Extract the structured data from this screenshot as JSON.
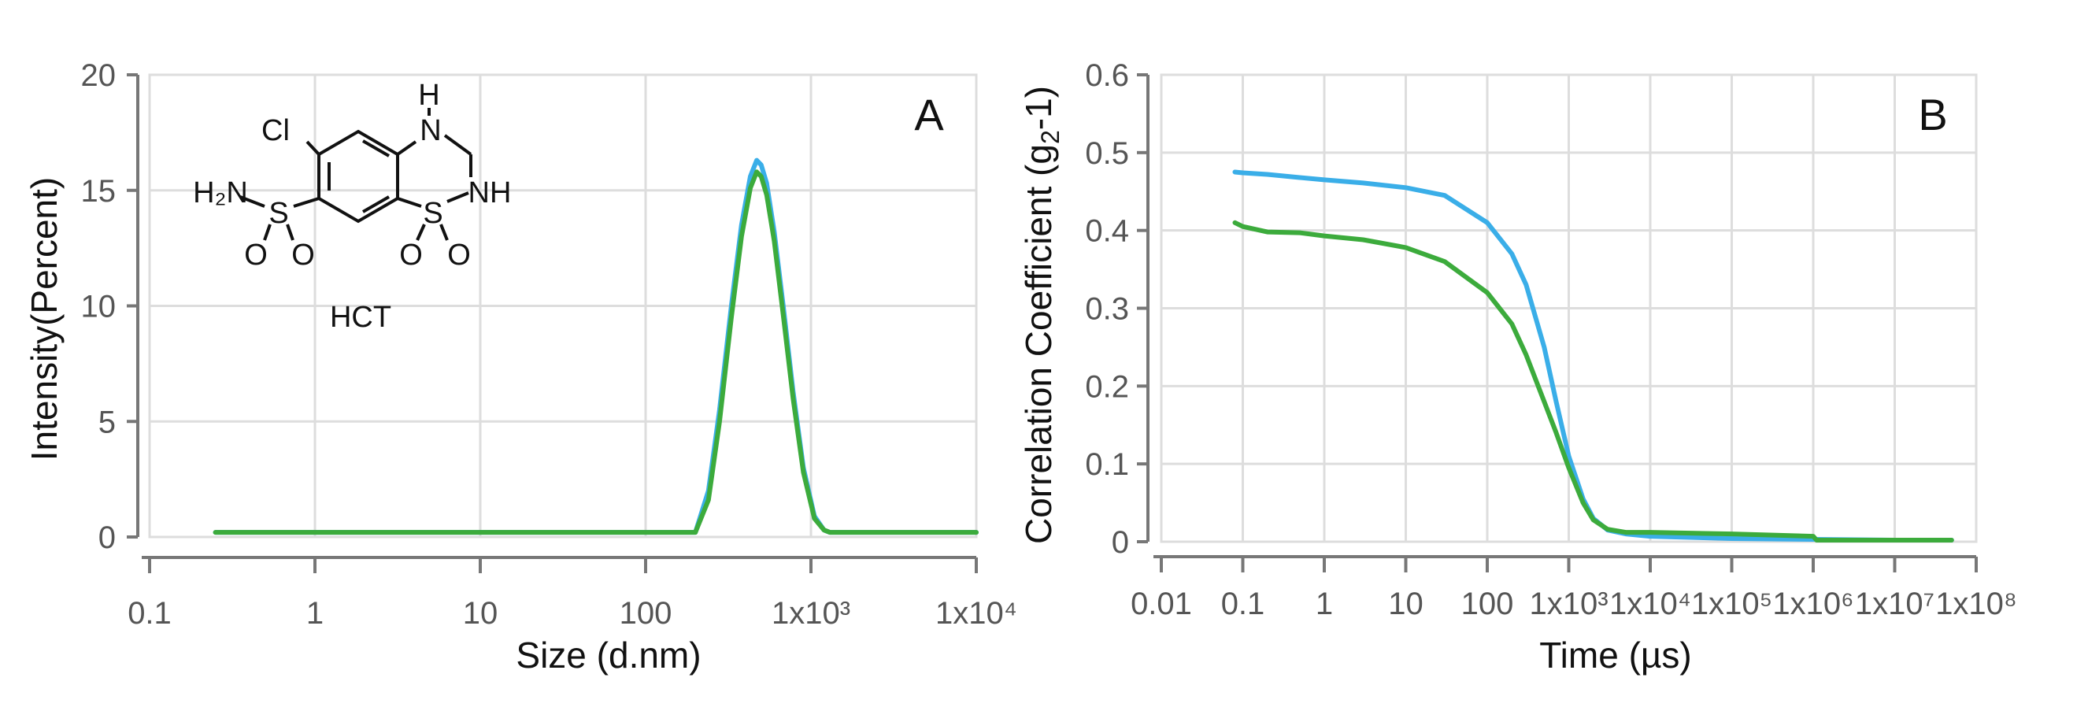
{
  "chart_data": [
    {
      "type": "line",
      "panel": "A",
      "xlabel": "Size (d.nm)",
      "ylabel": "Intensity(Percent)",
      "x_scale": "log",
      "xlim": [
        0.1,
        10000
      ],
      "ylim": [
        0,
        20
      ],
      "x_tick_labels": [
        "0.1",
        "1",
        "10",
        "100",
        "1x10³",
        "1x10⁴"
      ],
      "y_tick_labels": [
        "0",
        "5",
        "10",
        "15",
        "20"
      ],
      "grid": true,
      "inset_label": "HCT",
      "series": [
        {
          "color": "#3aaee8",
          "x": [
            0.25,
            10,
            100,
            200,
            240,
            280,
            330,
            380,
            430,
            470,
            500,
            540,
            600,
            680,
            780,
            900,
            1050,
            1200,
            1300,
            2000,
            5000,
            10000
          ],
          "y": [
            0.2,
            0.2,
            0.2,
            0.2,
            2.0,
            5.5,
            10.0,
            13.5,
            15.6,
            16.3,
            16.1,
            15.3,
            13.2,
            10.0,
            6.3,
            3.0,
            0.9,
            0.3,
            0.2,
            0.2,
            0.2,
            0.2
          ]
        },
        {
          "color": "#3cab3c",
          "x": [
            0.25,
            10,
            100,
            200,
            240,
            280,
            330,
            380,
            430,
            470,
            500,
            540,
            600,
            680,
            780,
            900,
            1050,
            1200,
            1300,
            2000,
            5000,
            10000
          ],
          "y": [
            0.2,
            0.2,
            0.2,
            0.2,
            1.6,
            5.0,
            9.5,
            13.0,
            15.1,
            15.8,
            15.6,
            14.8,
            12.8,
            9.6,
            6.0,
            2.8,
            0.8,
            0.3,
            0.2,
            0.2,
            0.2,
            0.2
          ]
        }
      ]
    },
    {
      "type": "line",
      "panel": "B",
      "xlabel": "Time (µs)",
      "ylabel_main": "Correlation Coefficient (g",
      "ylabel_sub": "2",
      "ylabel_tail": "-1)",
      "x_scale": "log",
      "xlim": [
        0.01,
        100000000
      ],
      "ylim": [
        0,
        0.6
      ],
      "x_tick_labels": [
        "0.01",
        "0.1",
        "1",
        "10",
        "100",
        "1x10³",
        "1x10⁴",
        "1x10⁵",
        "1x10⁶",
        "1x10⁷",
        "1x10⁸"
      ],
      "y_tick_labels": [
        "0",
        "0.1",
        "0.2",
        "0.3",
        "0.4",
        "0.5",
        "0.6"
      ],
      "grid": true,
      "series": [
        {
          "color": "#3aaee8",
          "x": [
            0.08,
            0.1,
            0.2,
            0.5,
            1,
            3,
            10,
            30,
            100,
            200,
            300,
            500,
            700,
            1000,
            1500,
            2000,
            3000,
            5000,
            10000,
            100000,
            1000000,
            10000000,
            50000000
          ],
          "y": [
            0.475,
            0.474,
            0.472,
            0.468,
            0.465,
            0.461,
            0.455,
            0.445,
            0.41,
            0.37,
            0.33,
            0.25,
            0.18,
            0.11,
            0.055,
            0.03,
            0.015,
            0.01,
            0.007,
            0.004,
            0.003,
            0.002,
            0.002
          ]
        },
        {
          "color": "#3cab3c",
          "x": [
            0.08,
            0.1,
            0.2,
            0.5,
            1,
            3,
            10,
            30,
            100,
            200,
            300,
            500,
            700,
            1000,
            1500,
            2000,
            3000,
            5000,
            10000,
            100000,
            1000000,
            1100000,
            10000000,
            50000000
          ],
          "y": [
            0.41,
            0.405,
            0.398,
            0.397,
            0.393,
            0.388,
            0.378,
            0.36,
            0.32,
            0.28,
            0.24,
            0.18,
            0.14,
            0.095,
            0.05,
            0.028,
            0.016,
            0.012,
            0.012,
            0.01,
            0.007,
            0.002,
            0.002,
            0.002
          ]
        }
      ]
    }
  ],
  "panel_letters": [
    "A",
    "B"
  ],
  "molecule": {
    "atoms": {
      "cl": "Cl",
      "h_top": "H",
      "n_top": "N",
      "h2n": "H₂N",
      "s_left": "S",
      "s_right": "S",
      "nh": "NH",
      "o1": "O",
      "o2": "O",
      "o3": "O",
      "o4": "O"
    },
    "name": "HCT"
  }
}
